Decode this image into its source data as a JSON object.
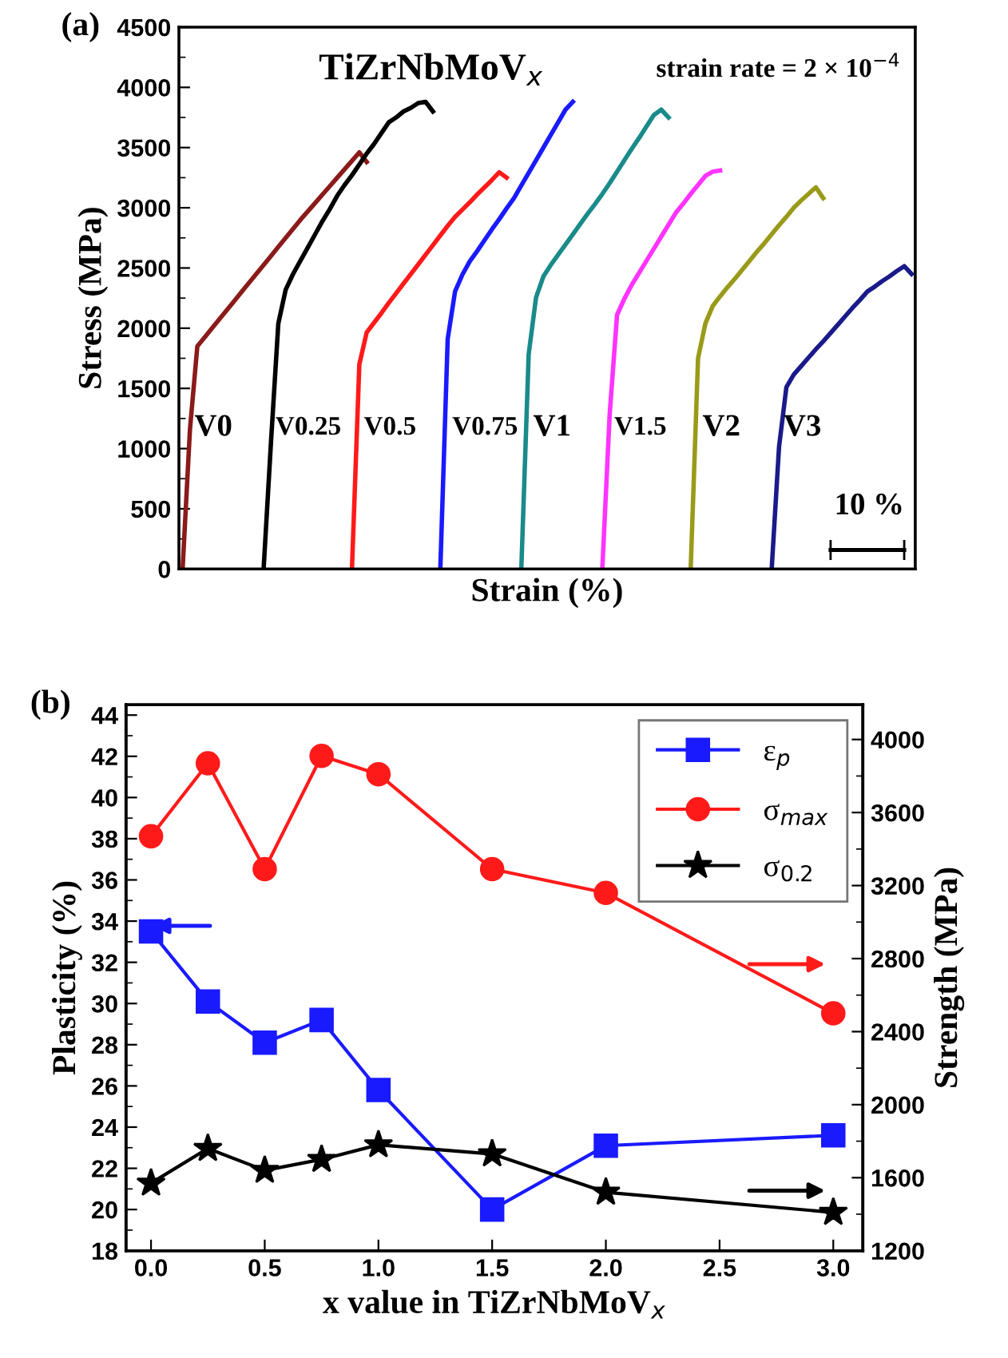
{
  "chart_data": [
    {
      "type": "line",
      "title": "(a)",
      "xlabel": "Strain (%)",
      "ylabel": "Stress (MPa)",
      "ylim": [
        0,
        4500
      ],
      "yticks": [
        0,
        500,
        1000,
        1500,
        2000,
        2500,
        3000,
        3500,
        4000,
        4500
      ],
      "tick_labels": "y",
      "grid": false,
      "line_style": "solid",
      "annotations": [
        "TiZrNbMoV$_{x}$",
        "strain rate = 2 × 10$^{−4}$",
        "10 %"
      ],
      "categories": [
        null,
        null,
        null,
        null,
        null,
        null,
        null,
        null,
        null,
        null,
        null,
        null,
        null,
        null,
        null,
        null,
        null,
        null,
        null,
        null,
        null,
        null,
        null,
        null,
        null,
        null,
        null,
        null,
        null,
        null,
        null,
        null,
        null,
        null,
        null,
        null,
        null,
        null,
        null,
        null,
        null,
        null,
        null,
        null,
        null,
        null,
        null,
        null,
        null,
        null,
        null,
        null,
        null,
        null,
        null,
        null,
        null,
        null,
        null,
        null,
        null,
        null,
        null,
        null,
        null,
        null,
        null,
        null,
        null,
        null,
        null,
        null,
        null,
        null,
        null,
        null,
        null,
        null,
        null,
        null,
        null,
        null,
        null,
        null,
        null,
        null,
        null,
        null,
        null,
        null,
        null,
        null,
        null,
        null,
        null,
        null,
        null,
        null,
        null,
        null
      ],
      "series": [
        {
          "name": "V0",
          "color": "#8b1a1a",
          "values": [
            0,
            1160,
            1850,
            1925,
            2000,
            2075,
            2150,
            2225,
            2300,
            2375,
            2450,
            2525,
            2600,
            2675,
            2750,
            2825,
            2900,
            2970,
            3040,
            3110,
            3180,
            3250,
            3320,
            3390,
            3460,
            3380,
            null,
            null,
            null,
            null,
            null,
            null,
            null,
            null,
            null,
            null,
            null,
            null,
            null,
            null,
            null,
            null,
            null,
            null,
            null,
            null,
            null,
            null,
            null,
            null,
            null,
            null,
            null,
            null,
            null,
            null,
            null,
            null,
            null,
            null,
            null,
            null,
            null,
            null,
            null,
            null,
            null,
            null,
            null,
            null,
            null,
            null,
            null,
            null,
            null,
            null,
            null,
            null,
            null,
            null,
            null,
            null,
            null,
            null,
            null,
            null,
            null,
            null,
            null,
            null,
            null,
            null,
            null,
            null,
            null,
            null,
            null,
            null,
            null,
            null
          ]
        },
        {
          "name": "V0.25",
          "color": "#000000",
          "values": [
            null,
            null,
            null,
            null,
            null,
            null,
            null,
            null,
            null,
            null,
            null,
            0,
            1050,
            2040,
            2320,
            2450,
            2560,
            2670,
            2780,
            2890,
            2990,
            3100,
            3190,
            3270,
            3360,
            3450,
            3530,
            3620,
            3710,
            3750,
            3800,
            3830,
            3870,
            3880,
            3800,
            null,
            null,
            null,
            null,
            null,
            null,
            null,
            null,
            null,
            null,
            null,
            null,
            null,
            null,
            null,
            null,
            null,
            null,
            null,
            null,
            null,
            null,
            null,
            null,
            null,
            null,
            null,
            null,
            null,
            null,
            null,
            null,
            null,
            null,
            null,
            null,
            null,
            null,
            null,
            null,
            null,
            null,
            null,
            null,
            null,
            null,
            null,
            null,
            null,
            null,
            null,
            null,
            null,
            null,
            null,
            null,
            null,
            null,
            null,
            null,
            null,
            null,
            null,
            null,
            null
          ]
        },
        {
          "name": "V0.5",
          "color": "#ff1a1a",
          "values": [
            null,
            null,
            null,
            null,
            null,
            null,
            null,
            null,
            null,
            null,
            null,
            null,
            null,
            null,
            null,
            null,
            null,
            null,
            null,
            null,
            null,
            null,
            null,
            0,
            1700,
            1965,
            2045,
            2125,
            2210,
            2290,
            2370,
            2450,
            2530,
            2610,
            2690,
            2770,
            2850,
            2925,
            2985,
            3045,
            3110,
            3170,
            3230,
            3295,
            3250,
            null,
            null,
            null,
            null,
            null,
            null,
            null,
            null,
            null,
            null,
            null,
            null,
            null,
            null,
            null,
            null,
            null,
            null,
            null,
            null,
            null,
            null,
            null,
            null,
            null,
            null,
            null,
            null,
            null,
            null,
            null,
            null,
            null,
            null,
            null,
            null,
            null,
            null,
            null,
            null,
            null,
            null,
            null,
            null,
            null,
            null,
            null,
            null,
            null,
            null,
            null,
            null,
            null,
            null,
            null
          ]
        },
        {
          "name": "V0.75",
          "color": "#1a1aff",
          "values": [
            null,
            null,
            null,
            null,
            null,
            null,
            null,
            null,
            null,
            null,
            null,
            null,
            null,
            null,
            null,
            null,
            null,
            null,
            null,
            null,
            null,
            null,
            null,
            null,
            null,
            null,
            null,
            null,
            null,
            null,
            null,
            null,
            null,
            null,
            null,
            0,
            1910,
            2305,
            2445,
            2555,
            2640,
            2730,
            2820,
            2905,
            2995,
            3080,
            3185,
            3290,
            3395,
            3500,
            3605,
            3710,
            3815,
            3880,
            null,
            null,
            null,
            null,
            null,
            null,
            null,
            null,
            null,
            null,
            null,
            null,
            null,
            null,
            null,
            null,
            null,
            null,
            null,
            null,
            null,
            null,
            null,
            null,
            null,
            null,
            null,
            null,
            null,
            null,
            null,
            null,
            null,
            null,
            null,
            null,
            null,
            null,
            null,
            null,
            null,
            null,
            null,
            null,
            null,
            null
          ]
        },
        {
          "name": "V1",
          "color": "#1a8a8a",
          "values": [
            null,
            null,
            null,
            null,
            null,
            null,
            null,
            null,
            null,
            null,
            null,
            null,
            null,
            null,
            null,
            null,
            null,
            null,
            null,
            null,
            null,
            null,
            null,
            null,
            null,
            null,
            null,
            null,
            null,
            null,
            null,
            null,
            null,
            null,
            null,
            null,
            null,
            null,
            null,
            null,
            null,
            null,
            null,
            null,
            null,
            null,
            0,
            1785,
            2255,
            2430,
            2525,
            2610,
            2695,
            2780,
            2865,
            2950,
            3030,
            3115,
            3205,
            3300,
            3395,
            3490,
            3580,
            3675,
            3770,
            3815,
            3750,
            null,
            null,
            null,
            null,
            null,
            null,
            null,
            null,
            null,
            null,
            null,
            null,
            null,
            null,
            null,
            null,
            null,
            null,
            null,
            null,
            null,
            null,
            null,
            null,
            null,
            null,
            null,
            null,
            null,
            null,
            null,
            null,
            null
          ]
        },
        {
          "name": "V1.5",
          "color": "#ff33ff",
          "values": [
            null,
            null,
            null,
            null,
            null,
            null,
            null,
            null,
            null,
            null,
            null,
            null,
            null,
            null,
            null,
            null,
            null,
            null,
            null,
            null,
            null,
            null,
            null,
            null,
            null,
            null,
            null,
            null,
            null,
            null,
            null,
            null,
            null,
            null,
            null,
            null,
            null,
            null,
            null,
            null,
            null,
            null,
            null,
            null,
            null,
            null,
            null,
            null,
            null,
            null,
            null,
            null,
            null,
            null,
            null,
            null,
            null,
            0,
            1285,
            2110,
            2245,
            2360,
            2460,
            2560,
            2660,
            2760,
            2860,
            2960,
            3035,
            3115,
            3190,
            3265,
            3300,
            3310,
            null,
            null,
            null,
            null,
            null,
            null,
            null,
            null,
            null,
            null,
            null,
            null,
            null,
            null,
            null,
            null,
            null,
            null,
            null,
            null,
            null,
            null,
            null,
            null,
            null,
            null
          ]
        },
        {
          "name": "V2",
          "color": "#9a9a1a",
          "values": [
            null,
            null,
            null,
            null,
            null,
            null,
            null,
            null,
            null,
            null,
            null,
            null,
            null,
            null,
            null,
            null,
            null,
            null,
            null,
            null,
            null,
            null,
            null,
            null,
            null,
            null,
            null,
            null,
            null,
            null,
            null,
            null,
            null,
            null,
            null,
            null,
            null,
            null,
            null,
            null,
            null,
            null,
            null,
            null,
            null,
            null,
            null,
            null,
            null,
            null,
            null,
            null,
            null,
            null,
            null,
            null,
            null,
            null,
            null,
            null,
            null,
            null,
            null,
            null,
            null,
            null,
            null,
            null,
            null,
            0,
            1750,
            2040,
            2185,
            2265,
            2340,
            2410,
            2485,
            2560,
            2635,
            2705,
            2780,
            2855,
            2925,
            3000,
            3060,
            3115,
            3170,
            3080,
            null,
            null,
            null,
            null,
            null,
            null,
            null,
            null,
            null,
            null,
            null,
            null
          ]
        },
        {
          "name": "V3",
          "color": "#1a1a8a",
          "values": [
            null,
            null,
            null,
            null,
            null,
            null,
            null,
            null,
            null,
            null,
            null,
            null,
            null,
            null,
            null,
            null,
            null,
            null,
            null,
            null,
            null,
            null,
            null,
            null,
            null,
            null,
            null,
            null,
            null,
            null,
            null,
            null,
            null,
            null,
            null,
            null,
            null,
            null,
            null,
            null,
            null,
            null,
            null,
            null,
            null,
            null,
            null,
            null,
            null,
            null,
            null,
            null,
            null,
            null,
            null,
            null,
            null,
            null,
            null,
            null,
            null,
            null,
            null,
            null,
            null,
            null,
            null,
            null,
            null,
            null,
            null,
            null,
            null,
            null,
            null,
            null,
            null,
            null,
            null,
            null,
            0,
            1015,
            1510,
            1615,
            1685,
            1755,
            1825,
            1890,
            1960,
            2030,
            2100,
            2170,
            2235,
            2305,
            2345,
            2390,
            2430,
            2475,
            2515,
            2450
          ]
        }
      ]
    },
    {
      "type": "line",
      "title": "(b)",
      "xlabel": "x value in TiZrNbMoV$_{x}$",
      "ylabel": "Plasticity (%)",
      "y2label": "Strength (MPa)",
      "xlim": [
        -0.11,
        3.13
      ],
      "xticks": [
        {
          "value": 0,
          "label": "0.0"
        },
        0.5,
        {
          "value": 1,
          "label": "1.0"
        },
        1.5,
        {
          "value": 2,
          "label": "2.0"
        },
        2.5,
        {
          "value": 3,
          "label": "3.0"
        }
      ],
      "ylim": [
        18,
        44.5
      ],
      "yticks": [
        18,
        20,
        22,
        24,
        26,
        28,
        30,
        32,
        34,
        36,
        38,
        40,
        42,
        44
      ],
      "y2lim": [
        1200,
        4190
      ],
      "y2ticks": [
        1200,
        1600,
        2000,
        2400,
        2800,
        3200,
        3600,
        4000
      ],
      "grid": false,
      "legend": "top right",
      "line_style": "solid",
      "series": [
        {
          "name": "ε$_{p}$",
          "color": "#1a1aff",
          "marker": "square",
          "x": [
            0,
            0.25,
            0.5,
            0.75,
            1,
            1.5,
            2,
            3
          ],
          "values": [
            33.5,
            30.1,
            28.1,
            29.2,
            25.8,
            20.0,
            23.1,
            23.6
          ]
        },
        {
          "name": "σ$_{max}$",
          "color": "#ff1a1a",
          "marker": "circle",
          "axis": "y2",
          "x": [
            0,
            0.25,
            0.5,
            0.75,
            1,
            1.5,
            2,
            3
          ],
          "values": [
            3470,
            3870,
            3290,
            3910,
            3810,
            3290,
            3160,
            2500
          ]
        },
        {
          "name": "σ$_{0.2}$",
          "color": "#000000",
          "marker": "star",
          "axis": "y2",
          "x": [
            0,
            0.25,
            0.5,
            0.75,
            1,
            1.5,
            2,
            3
          ],
          "values": [
            1570,
            1760,
            1640,
            1700,
            1780,
            1730,
            1520,
            1410
          ]
        }
      ]
    }
  ]
}
